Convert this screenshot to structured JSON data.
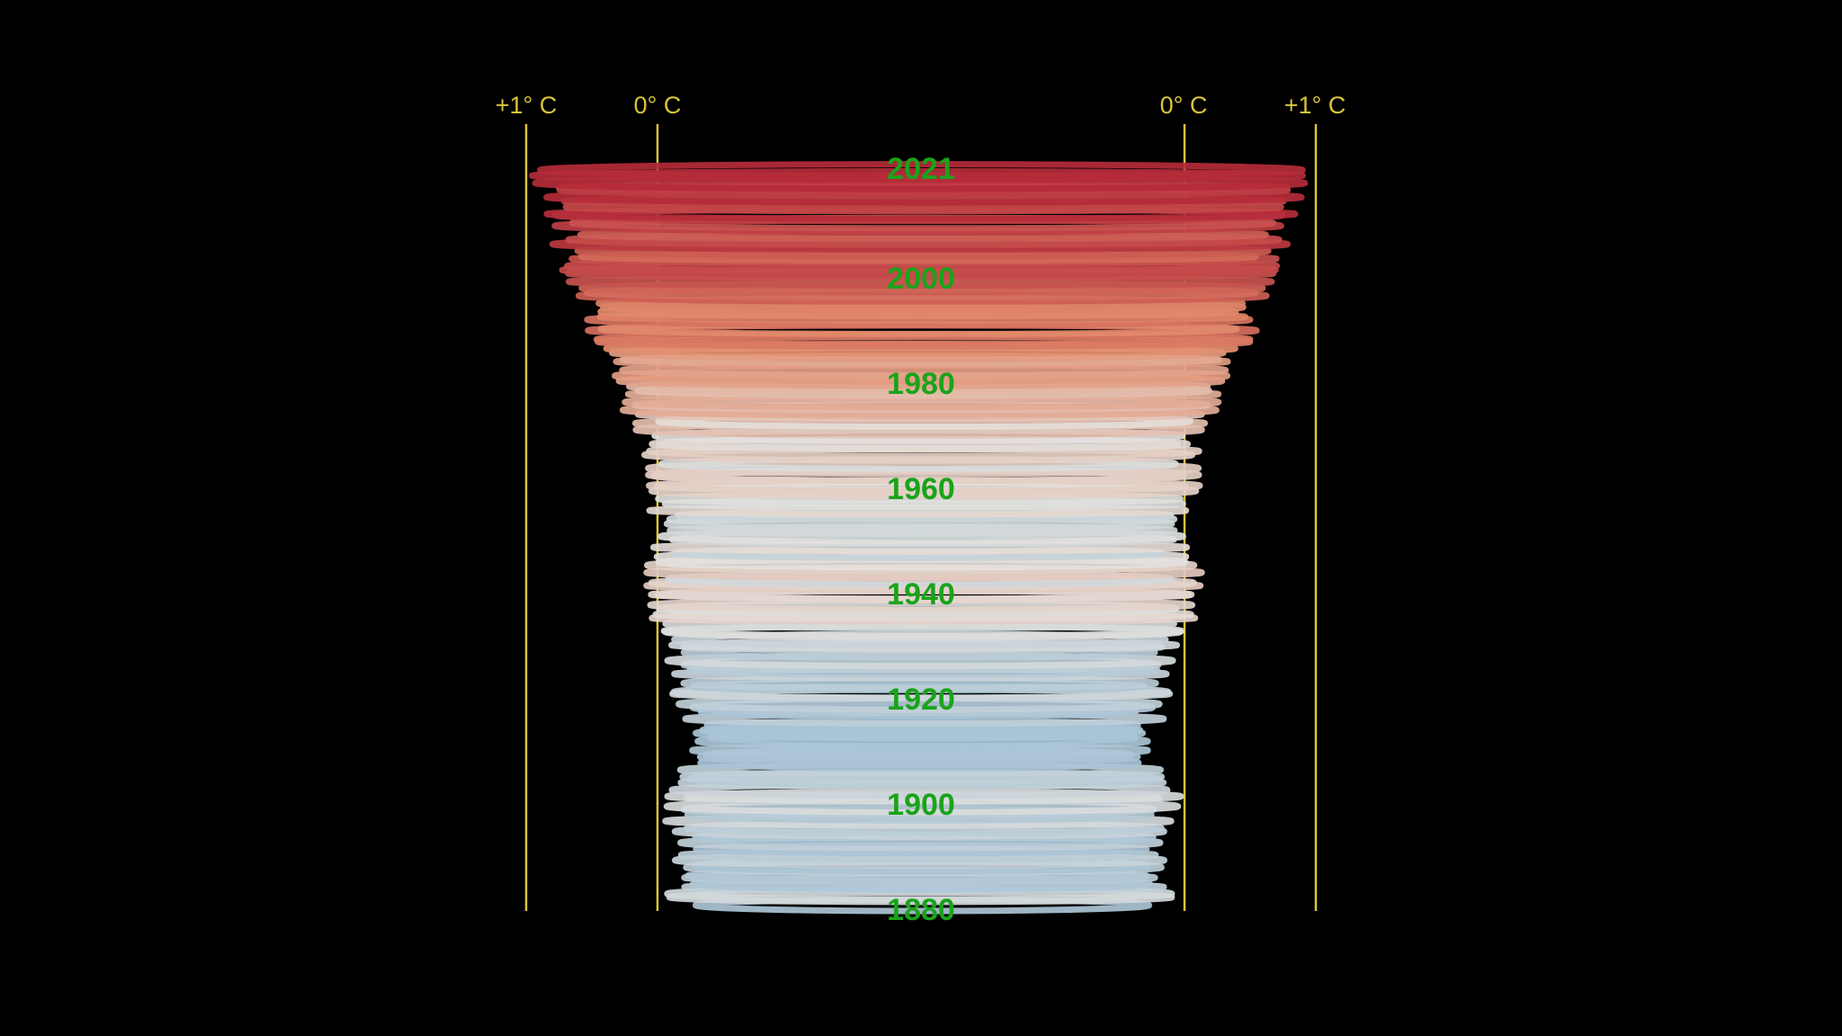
{
  "chart_data": {
    "type": "area",
    "title": "",
    "xlabel": "",
    "ylabel": "",
    "axis_markers": [
      {
        "label": "+1° C",
        "side": "left",
        "anomaly": 1
      },
      {
        "label": "0° C",
        "side": "left",
        "anomaly": 0
      },
      {
        "label": "0° C",
        "side": "right",
        "anomaly": 0
      },
      {
        "label": "+1° C",
        "side": "right",
        "anomaly": 1
      }
    ],
    "year_labels": [
      "2021",
      "2000",
      "1980",
      "1960",
      "1940",
      "1920",
      "1900",
      "1880"
    ],
    "year_range": [
      1880,
      2021
    ],
    "xlim": [
      -0.25,
      1.05
    ],
    "series": [
      {
        "x": [
          1880,
          1890,
          1900,
          1910,
          1920,
          1930,
          1940,
          1950,
          1960,
          1970,
          1980,
          1990,
          2000,
          2010,
          2021
        ],
        "values": [
          -0.18,
          -0.2,
          -0.14,
          -0.3,
          -0.22,
          -0.1,
          0.05,
          -0.08,
          0.02,
          0.03,
          0.26,
          0.45,
          0.6,
          0.72,
          0.85
        ]
      }
    ],
    "color_scale": {
      "cold": "#a9c4d6",
      "neutral": "#e4e1dd",
      "warm": "#e38c6c",
      "hot": "#b52b3a"
    },
    "axis_color": "#d9c43a",
    "label_color": "#1aa31a",
    "background": "#000000"
  }
}
